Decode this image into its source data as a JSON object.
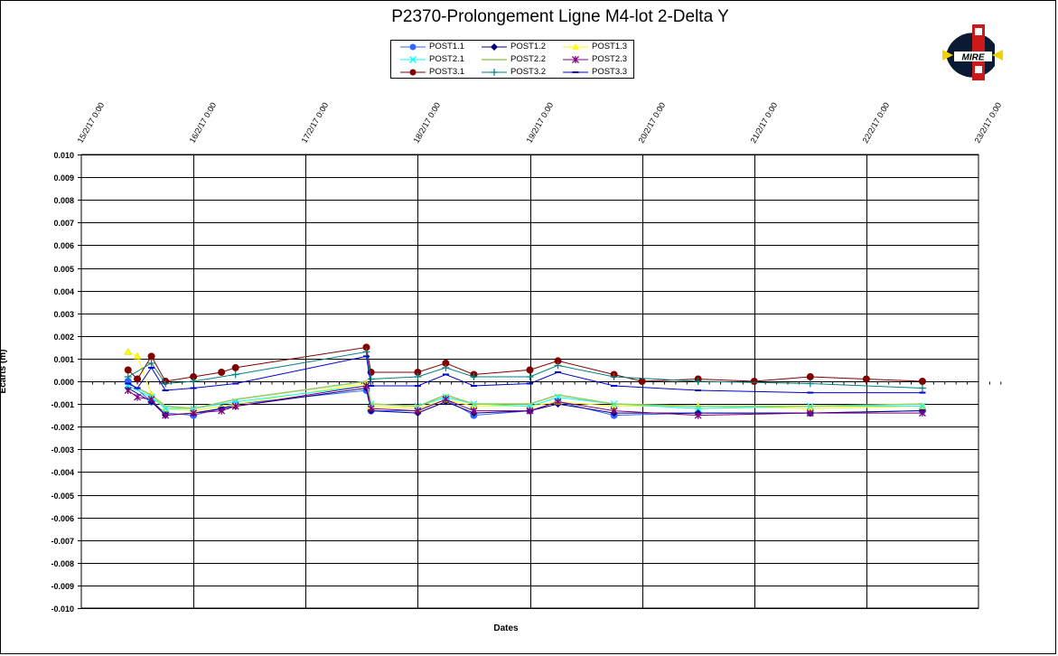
{
  "chart_data": {
    "type": "line",
    "title": "P2370-Prolongement  Ligne  M4-lot  2-Delta  Y",
    "xlabel": "Dates",
    "ylabel": "Ecarts (m)",
    "ylim": [
      -0.01,
      0.01
    ],
    "xlim": [
      "15/2/17 0:00",
      "23/2/17 0:00"
    ],
    "x_ticks": [
      "15/2/17 0:00",
      "16/2/17 0:00",
      "17/2/17 0:00",
      "18/2/17 0:00",
      "19/2/17 0:00",
      "20/2/17 0:00",
      "21/2/17 0:00",
      "22/2/17 0:00",
      "23/2/17 0:00"
    ],
    "y_ticks": [
      "0.010",
      "0.009",
      "0.008",
      "0.007",
      "0.006",
      "0.005",
      "0.004",
      "0.003",
      "0.002",
      "0.001",
      "0.000",
      "-0.001",
      "-0.002",
      "-0.003",
      "-0.004",
      "-0.005",
      "-0.006",
      "-0.007",
      "-0.008",
      "-0.009",
      "-0.010"
    ],
    "grid": true,
    "legend_position": "top-center",
    "series": [
      {
        "name": "POST1.1",
        "color": "#3366ff",
        "marker": "circle",
        "points": [
          [
            "15/2/17 10:00",
            0.0
          ],
          [
            "15/2/17 15:00",
            -0.0009
          ],
          [
            "15/2/17 18:00",
            -0.0014
          ],
          [
            "16/2/17 0:00",
            -0.0015
          ],
          [
            "16/2/17 6:00",
            -0.0012
          ],
          [
            "16/2/17 9:00",
            -0.001
          ],
          [
            "17/2/17 13:00",
            -0.0004
          ],
          [
            "17/2/17 14:00",
            -0.0013
          ],
          [
            "18/2/17 0:00",
            -0.0013
          ],
          [
            "18/2/17 6:00",
            -0.0008
          ],
          [
            "18/2/17 12:00",
            -0.0015
          ],
          [
            "19/2/17 0:00",
            -0.0013
          ],
          [
            "19/2/17 6:00",
            -0.0009
          ],
          [
            "19/2/17 18:00",
            -0.0015
          ],
          [
            "20/2/17 12:00",
            -0.0014
          ],
          [
            "21/2/17 12:00",
            -0.0014
          ],
          [
            "22/2/17 12:00",
            -0.0013
          ]
        ]
      },
      {
        "name": "POST1.2",
        "color": "#000080",
        "marker": "diamond",
        "points": [
          [
            "15/2/17 10:00",
            -0.0003
          ],
          [
            "15/2/17 15:00",
            -0.0009
          ],
          [
            "15/2/17 18:00",
            -0.0015
          ],
          [
            "16/2/17 0:00",
            -0.0014
          ],
          [
            "16/2/17 6:00",
            -0.0012
          ],
          [
            "16/2/17 9:00",
            -0.0011
          ],
          [
            "17/2/17 13:00",
            -0.0003
          ],
          [
            "17/2/17 14:00",
            -0.0013
          ],
          [
            "18/2/17 0:00",
            -0.0014
          ],
          [
            "18/2/17 6:00",
            -0.0009
          ],
          [
            "18/2/17 12:00",
            -0.0014
          ],
          [
            "19/2/17 0:00",
            -0.0013
          ],
          [
            "19/2/17 6:00",
            -0.001
          ],
          [
            "19/2/17 18:00",
            -0.0014
          ],
          [
            "20/2/17 12:00",
            -0.0014
          ],
          [
            "21/2/17 12:00",
            -0.0014
          ],
          [
            "22/2/17 12:00",
            -0.0013
          ]
        ]
      },
      {
        "name": "POST1.3",
        "color": "#ffff00",
        "marker": "triangle",
        "points": [
          [
            "15/2/17 10:00",
            0.0013
          ],
          [
            "15/2/17 12:00",
            0.0011
          ],
          [
            "15/2/17 15:00",
            -0.0006
          ],
          [
            "15/2/17 18:00",
            -0.0012
          ],
          [
            "16/2/17 0:00",
            -0.0013
          ],
          [
            "16/2/17 9:00",
            -0.001
          ],
          [
            "17/2/17 13:00",
            -0.0001
          ],
          [
            "17/2/17 14:00",
            -0.0011
          ],
          [
            "18/2/17 0:00",
            -0.0012
          ],
          [
            "18/2/17 6:00",
            -0.0008
          ],
          [
            "18/2/17 12:00",
            -0.0011
          ],
          [
            "19/2/17 0:00",
            -0.0011
          ],
          [
            "19/2/17 6:00",
            -0.0009
          ],
          [
            "19/2/17 18:00",
            -0.0011
          ],
          [
            "20/2/17 12:00",
            -0.0011
          ],
          [
            "21/2/17 12:00",
            -0.0012
          ],
          [
            "22/2/17 12:00",
            -0.0011
          ]
        ]
      },
      {
        "name": "POST2.1",
        "color": "#00ffff",
        "marker": "x",
        "points": [
          [
            "15/2/17 10:00",
            -0.0002
          ],
          [
            "15/2/17 15:00",
            -0.0007
          ],
          [
            "15/2/17 18:00",
            -0.0012
          ],
          [
            "16/2/17 0:00",
            -0.0012
          ],
          [
            "16/2/17 9:00",
            -0.0009
          ],
          [
            "17/2/17 13:00",
            -0.0002
          ],
          [
            "17/2/17 14:00",
            -0.001
          ],
          [
            "18/2/17 0:00",
            -0.0011
          ],
          [
            "18/2/17 6:00",
            -0.0007
          ],
          [
            "18/2/17 12:00",
            -0.001
          ],
          [
            "19/2/17 0:00",
            -0.0011
          ],
          [
            "19/2/17 6:00",
            -0.0007
          ],
          [
            "19/2/17 18:00",
            -0.001
          ],
          [
            "20/2/17 12:00",
            -0.0012
          ],
          [
            "21/2/17 12:00",
            -0.0011
          ],
          [
            "22/2/17 12:00",
            -0.0011
          ]
        ]
      },
      {
        "name": "POST2.2",
        "color": "#99cc66",
        "marker": "none",
        "points": [
          [
            "15/2/17 10:00",
            -0.0001
          ],
          [
            "15/2/17 15:00",
            -0.0006
          ],
          [
            "15/2/17 18:00",
            -0.0011
          ],
          [
            "16/2/17 0:00",
            -0.0012
          ],
          [
            "16/2/17 9:00",
            -0.0008
          ],
          [
            "17/2/17 13:00",
            0.0
          ],
          [
            "17/2/17 14:00",
            -0.001
          ],
          [
            "18/2/17 0:00",
            -0.0011
          ],
          [
            "18/2/17 6:00",
            -0.0006
          ],
          [
            "18/2/17 12:00",
            -0.001
          ],
          [
            "19/2/17 0:00",
            -0.001
          ],
          [
            "19/2/17 6:00",
            -0.0006
          ],
          [
            "19/2/17 18:00",
            -0.001
          ],
          [
            "20/2/17 12:00",
            -0.0011
          ],
          [
            "21/2/17 12:00",
            -0.0011
          ],
          [
            "22/2/17 12:00",
            -0.001
          ]
        ]
      },
      {
        "name": "POST2.3",
        "color": "#800080",
        "marker": "star",
        "points": [
          [
            "15/2/17 10:00",
            -0.0004
          ],
          [
            "15/2/17 12:00",
            -0.0007
          ],
          [
            "15/2/17 15:00",
            -0.0008
          ],
          [
            "15/2/17 18:00",
            -0.0015
          ],
          [
            "16/2/17 0:00",
            -0.0014
          ],
          [
            "16/2/17 6:00",
            -0.0013
          ],
          [
            "16/2/17 9:00",
            -0.0011
          ],
          [
            "17/2/17 13:00",
            -0.0002
          ],
          [
            "17/2/17 14:00",
            -0.0012
          ],
          [
            "18/2/17 0:00",
            -0.0013
          ],
          [
            "18/2/17 6:00",
            -0.0008
          ],
          [
            "18/2/17 12:00",
            -0.0013
          ],
          [
            "19/2/17 0:00",
            -0.0013
          ],
          [
            "19/2/17 6:00",
            -0.0009
          ],
          [
            "19/2/17 18:00",
            -0.0013
          ],
          [
            "20/2/17 12:00",
            -0.0015
          ],
          [
            "21/2/17 12:00",
            -0.0014
          ],
          [
            "22/2/17 12:00",
            -0.0014
          ]
        ]
      },
      {
        "name": "POST3.1",
        "color": "#800000",
        "marker": "circle",
        "points": [
          [
            "15/2/17 10:00",
            0.0005
          ],
          [
            "15/2/17 12:00",
            0.0001
          ],
          [
            "15/2/17 15:00",
            0.0011
          ],
          [
            "15/2/17 18:00",
            0.0
          ],
          [
            "16/2/17 0:00",
            0.0002
          ],
          [
            "16/2/17 6:00",
            0.0004
          ],
          [
            "16/2/17 9:00",
            0.0006
          ],
          [
            "17/2/17 13:00",
            0.0015
          ],
          [
            "17/2/17 14:00",
            0.0004
          ],
          [
            "18/2/17 0:00",
            0.0004
          ],
          [
            "18/2/17 6:00",
            0.0008
          ],
          [
            "18/2/17 12:00",
            0.0003
          ],
          [
            "19/2/17 0:00",
            0.0005
          ],
          [
            "19/2/17 6:00",
            0.0009
          ],
          [
            "19/2/17 18:00",
            0.0003
          ],
          [
            "20/2/17 0:00",
            0.0
          ],
          [
            "20/2/17 12:00",
            0.0001
          ],
          [
            "21/2/17 0:00",
            0.0
          ],
          [
            "21/2/17 12:00",
            0.0002
          ],
          [
            "22/2/17 0:00",
            0.0001
          ],
          [
            "22/2/17 12:00",
            0.0
          ]
        ]
      },
      {
        "name": "POST3.2",
        "color": "#008080",
        "marker": "plus",
        "points": [
          [
            "15/2/17 10:00",
            0.0002
          ],
          [
            "15/2/17 15:00",
            0.0008
          ],
          [
            "15/2/17 18:00",
            -0.0001
          ],
          [
            "16/2/17 0:00",
            0.0
          ],
          [
            "16/2/17 9:00",
            0.0003
          ],
          [
            "17/2/17 13:00",
            0.0013
          ],
          [
            "17/2/17 14:00",
            0.0001
          ],
          [
            "18/2/17 0:00",
            0.0002
          ],
          [
            "18/2/17 6:00",
            0.0006
          ],
          [
            "18/2/17 12:00",
            0.0002
          ],
          [
            "19/2/17 0:00",
            0.0002
          ],
          [
            "19/2/17 6:00",
            0.0007
          ],
          [
            "19/2/17 18:00",
            0.0002
          ],
          [
            "20/2/17 12:00",
            0.0
          ],
          [
            "21/2/17 12:00",
            -0.0001
          ],
          [
            "22/2/17 12:00",
            -0.0003
          ]
        ]
      },
      {
        "name": "POST3.3",
        "color": "#0000cc",
        "marker": "dash",
        "points": [
          [
            "15/2/17 10:00",
            -0.0001
          ],
          [
            "15/2/17 12:00",
            -0.0003
          ],
          [
            "15/2/17 15:00",
            0.0006
          ],
          [
            "15/2/17 18:00",
            -0.0004
          ],
          [
            "16/2/17 0:00",
            -0.0003
          ],
          [
            "16/2/17 9:00",
            -0.0001
          ],
          [
            "17/2/17 13:00",
            0.0011
          ],
          [
            "17/2/17 14:00",
            -0.0002
          ],
          [
            "18/2/17 0:00",
            -0.0002
          ],
          [
            "18/2/17 6:00",
            0.0003
          ],
          [
            "18/2/17 12:00",
            -0.0002
          ],
          [
            "19/2/17 0:00",
            -0.0001
          ],
          [
            "19/2/17 6:00",
            0.0004
          ],
          [
            "19/2/17 18:00",
            -0.0002
          ],
          [
            "20/2/17 12:00",
            -0.0004
          ],
          [
            "21/2/17 12:00",
            -0.0005
          ],
          [
            "22/2/17 12:00",
            -0.0005
          ]
        ]
      }
    ]
  },
  "logo": {
    "text": "MIRE"
  }
}
